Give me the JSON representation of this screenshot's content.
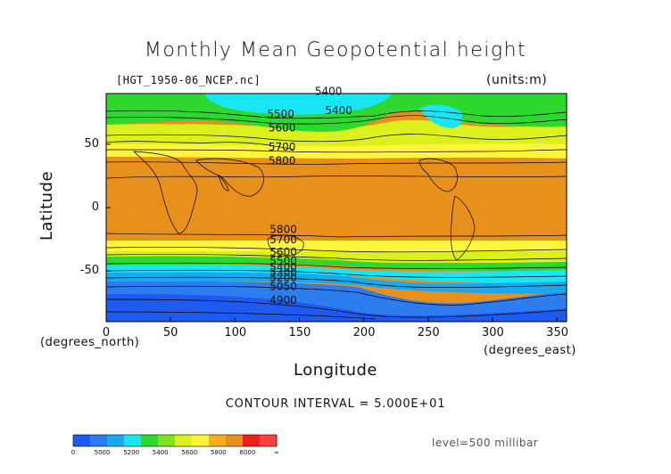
{
  "title": "Monthly Mean Geopotential height",
  "file_label": "[HGT_1950-06_NCEP.nc]",
  "units_label": "(units:m)",
  "x_axis": {
    "label": "Longitude",
    "unit_left": "(degrees_north)",
    "unit_right": "(degrees_east)",
    "ticks": [
      "0",
      "50",
      "100",
      "150",
      "200",
      "250",
      "300",
      "350"
    ],
    "range": [
      0,
      357.5
    ]
  },
  "y_axis": {
    "label": "Latitude",
    "ticks": [
      "50",
      "0",
      "-50"
    ],
    "range": [
      -90,
      90
    ]
  },
  "contour_interval_text": "CONTOUR INTERVAL = 5.000E+01",
  "level_text": "level=500 millibar",
  "contour_labels": [
    {
      "text": "5400",
      "lon": 162,
      "lat": 89
    },
    {
      "text": "5400",
      "lon": 170,
      "lat": 74
    },
    {
      "text": "5500",
      "lon": 125,
      "lat": 71
    },
    {
      "text": "5600",
      "lon": 126,
      "lat": 60
    },
    {
      "text": "5700",
      "lon": 126,
      "lat": 45
    },
    {
      "text": "5800",
      "lon": 126,
      "lat": 34
    },
    {
      "text": "5800",
      "lon": 127,
      "lat": -20
    },
    {
      "text": "5700",
      "lon": 127,
      "lat": -28
    },
    {
      "text": "5600",
      "lon": 127,
      "lat": -38
    },
    {
      "text": "5500",
      "lon": 127,
      "lat": -45
    },
    {
      "text": "5400",
      "lon": 127,
      "lat": -50
    },
    {
      "text": "5300",
      "lon": 127,
      "lat": -54
    },
    {
      "text": "5200",
      "lon": 127,
      "lat": -58
    },
    {
      "text": "5050",
      "lon": 127,
      "lat": -65
    },
    {
      "text": "4900",
      "lon": 127,
      "lat": -76
    }
  ],
  "colorbar": {
    "labels": [
      "0",
      "5000",
      "5200",
      "5400",
      "5600",
      "5800",
      "6000",
      "∞"
    ],
    "colors": [
      "#1e5af0",
      "#2d7cf0",
      "#1aa8ee",
      "#19e6f5",
      "#2fd82f",
      "#7fe41e",
      "#dcf01e",
      "#fff53c",
      "#f5b01e",
      "#e8901c",
      "#f01e1e",
      "#ff4040"
    ]
  },
  "chart_data": {
    "type": "heatmap",
    "variable": "Geopotential height",
    "level": "500 millibar",
    "units": "m",
    "period": "1950-06",
    "xlim": [
      0,
      357.5
    ],
    "ylim": [
      -90,
      90
    ],
    "bands_by_latitude": [
      {
        "lat_range": [
          -90,
          -78
        ],
        "range_m": [
          4850,
          5000
        ]
      },
      {
        "lat_range": [
          -78,
          -62
        ],
        "range_m": [
          5000,
          5200
        ]
      },
      {
        "lat_range": [
          -62,
          -50
        ],
        "range_m": [
          5200,
          5400
        ]
      },
      {
        "lat_range": [
          -50,
          -40
        ],
        "range_m": [
          5400,
          5600
        ]
      },
      {
        "lat_range": [
          -40,
          -27
        ],
        "range_m": [
          5600,
          5800
        ]
      },
      {
        "lat_range": [
          -27,
          38
        ],
        "range_m": [
          5800,
          6000
        ]
      },
      {
        "lat_range": [
          38,
          55
        ],
        "range_m": [
          5600,
          5800
        ]
      },
      {
        "lat_range": [
          55,
          72
        ],
        "range_m": [
          5400,
          5600
        ]
      },
      {
        "lat_range": [
          72,
          90
        ],
        "range_m": [
          5200,
          5400
        ]
      }
    ]
  }
}
